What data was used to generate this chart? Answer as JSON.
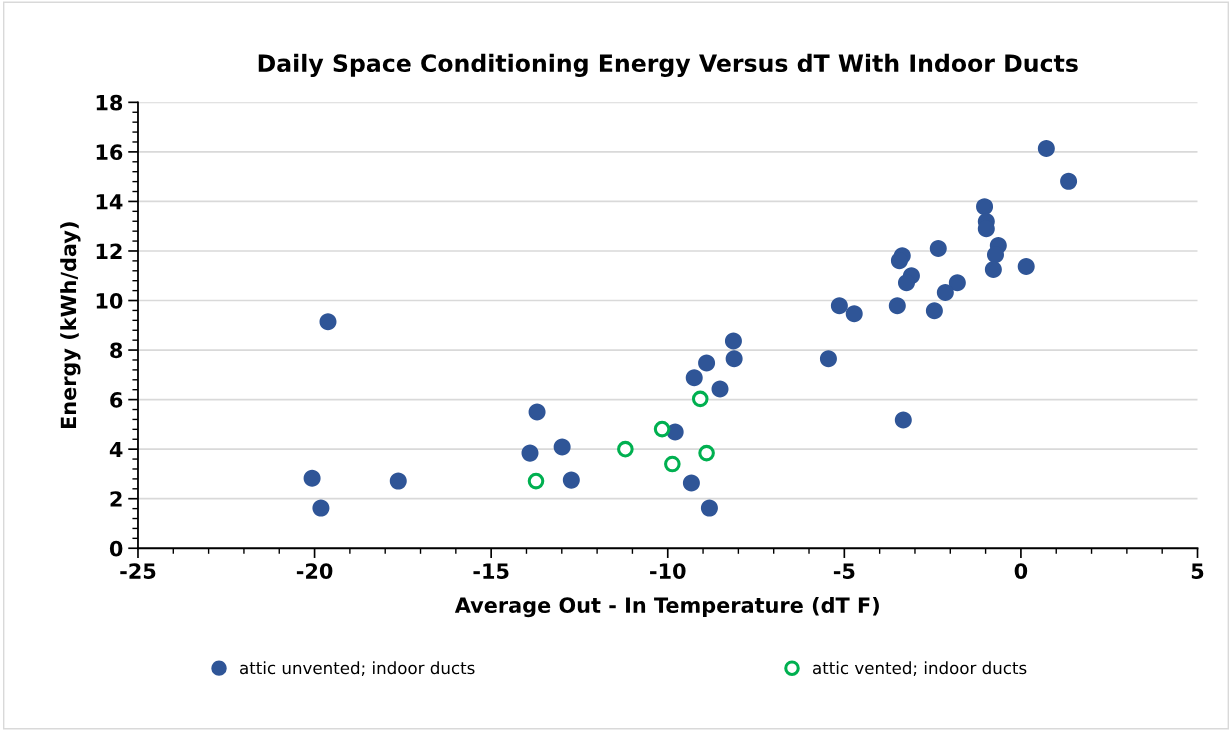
{
  "chart_data": {
    "type": "scatter",
    "title": "Daily Space Conditioning Energy Versus dT With Indoor Ducts",
    "xlabel": "Average Out - In Temperature (dT F)",
    "ylabel": "Energy (kWh/day)",
    "xlim": [
      -25,
      5
    ],
    "xticks": [
      -25,
      -20,
      -15,
      -10,
      -5,
      0,
      5
    ],
    "ylim": [
      0,
      18
    ],
    "yticks": [
      0,
      2,
      4,
      6,
      8,
      10,
      12,
      14,
      16,
      18
    ],
    "grid": "y",
    "legend": "bottom",
    "marker": "circle",
    "series": [
      {
        "name": "attic unvented; indoor ducts",
        "color": "#2f5597",
        "x": [
          -19.62,
          -13.7,
          -13.9,
          -12.99,
          -12.73,
          -20.07,
          -19.82,
          -17.63,
          -8.14,
          -8.12,
          -8.9,
          -9.25,
          -8.52,
          -9.79,
          -9.33,
          -8.82,
          -5.45,
          -5.14,
          -4.72,
          -3.5,
          -3.33,
          0.72,
          1.35,
          -1.03,
          -0.98,
          -0.98,
          -2.34,
          -0.64,
          -0.72,
          -0.78,
          0.15,
          -3.36,
          -3.44,
          -3.1,
          -3.24,
          -1.8,
          -2.14,
          -2.45
        ],
        "values": [
          9.14,
          5.5,
          3.84,
          4.09,
          2.75,
          2.83,
          1.62,
          2.71,
          8.37,
          7.65,
          7.48,
          6.88,
          6.43,
          4.69,
          2.63,
          1.62,
          7.65,
          9.79,
          9.47,
          9.79,
          5.18,
          16.14,
          14.81,
          13.79,
          13.19,
          12.9,
          12.1,
          12.22,
          11.85,
          11.25,
          11.37,
          11.81,
          11.61,
          11.0,
          10.72,
          10.72,
          10.32,
          9.59
        ]
      },
      {
        "name": "attic vented; indoor ducts",
        "color": "#00b050",
        "x": [
          -13.73,
          -11.2,
          -9.08,
          -10.16,
          -8.9,
          -9.87
        ],
        "values": [
          2.71,
          4.0,
          6.03,
          4.81,
          3.84,
          3.4
        ]
      }
    ]
  }
}
